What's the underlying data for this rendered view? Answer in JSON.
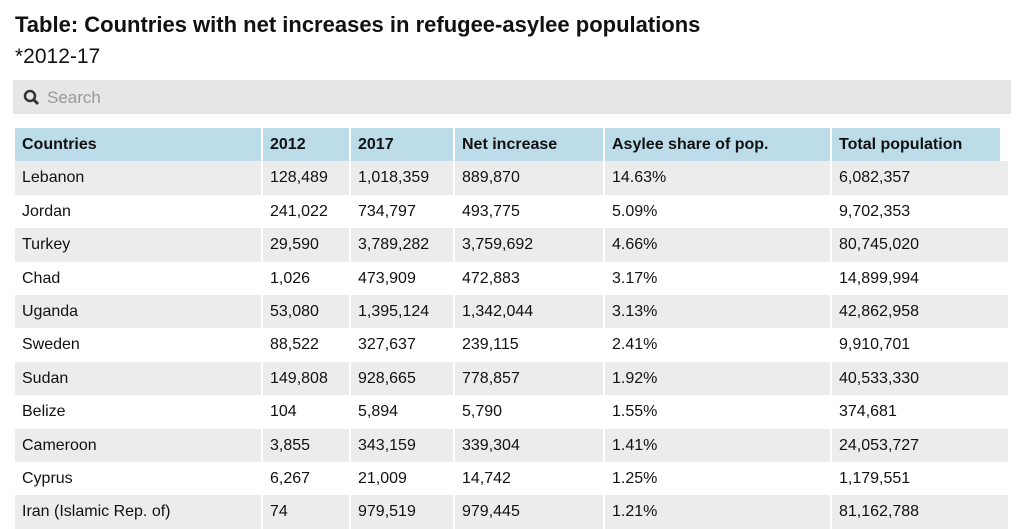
{
  "header": {
    "title": "Table: Countries with net increases in refugee-asylee populations",
    "subtitle": "*2012-17"
  },
  "search": {
    "placeholder": "Search"
  },
  "table": {
    "columns": [
      "Countries",
      "2012",
      "2017",
      "Net increase",
      "Asylee share of pop.",
      "Total population"
    ],
    "rows": [
      [
        "Lebanon",
        "128,489",
        "1,018,359",
        "889,870",
        "14.63%",
        "6,082,357"
      ],
      [
        "Jordan",
        "241,022",
        "734,797",
        "493,775",
        "5.09%",
        "9,702,353"
      ],
      [
        "Turkey",
        "29,590",
        "3,789,282",
        "3,759,692",
        "4.66%",
        "80,745,020"
      ],
      [
        "Chad",
        "1,026",
        "473,909",
        "472,883",
        "3.17%",
        "14,899,994"
      ],
      [
        "Uganda",
        "53,080",
        "1,395,124",
        "1,342,044",
        "3.13%",
        "42,862,958"
      ],
      [
        "Sweden",
        "88,522",
        "327,637",
        "239,115",
        "2.41%",
        "9,910,701"
      ],
      [
        "Sudan",
        "149,808",
        "928,665",
        "778,857",
        "1.92%",
        "40,533,330"
      ],
      [
        "Belize",
        "104",
        "5,894",
        "5,790",
        "1.55%",
        "374,681"
      ],
      [
        "Cameroon",
        "3,855",
        "343,159",
        "339,304",
        "1.41%",
        "24,053,727"
      ],
      [
        "Cyprus",
        "6,267",
        "21,009",
        "14,742",
        "1.25%",
        "1,179,551"
      ],
      [
        "Iran (Islamic Rep. of)",
        "74",
        "979,519",
        "979,445",
        "1.21%",
        "81,162,788"
      ]
    ]
  }
}
